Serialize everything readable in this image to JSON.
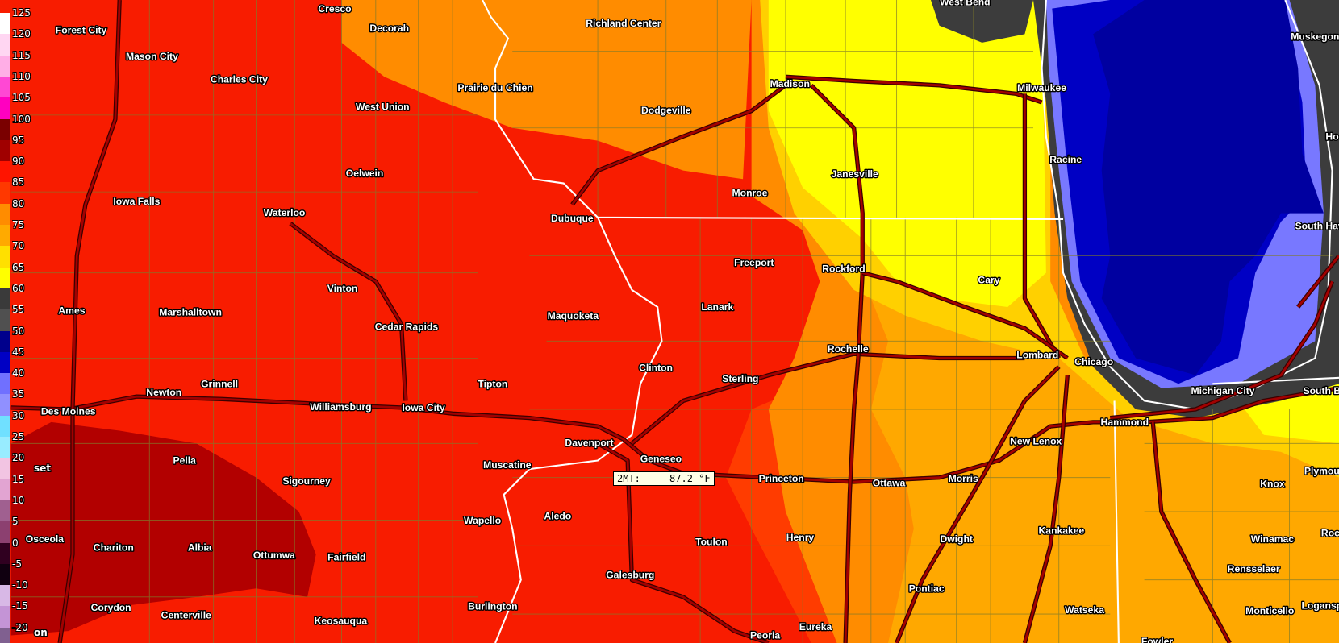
{
  "map": {
    "variable_readout": {
      "label": "2MT:",
      "value": "87.2",
      "unit": "°F"
    },
    "colors": {
      "base_red": "#f81c00",
      "dark_red": "#b20000",
      "orange_red": "#ff3c00",
      "orange": "#ff8c00",
      "light_orange": "#ffa800",
      "gold": "#ffd000",
      "yellow": "#ffff00",
      "lake_gray": "#3c3c3c",
      "lake_light_blue": "#7878ff",
      "lake_dark_blue": "#0000a0",
      "roads": "#a30000",
      "state_lines": "#ffffff"
    },
    "cities": [
      "Forest City",
      "Cresco",
      "Decorah",
      "Richland Center",
      "West Bend",
      "Muskegon",
      "Mason City",
      "Charles City",
      "Prairie du Chien",
      "Madison",
      "Milwaukee",
      "West Union",
      "Dodgeville",
      "Racine",
      "Ho",
      "Oelwein",
      "Janesville",
      "Monroe",
      "Iowa Falls",
      "Waterloo",
      "Dubuque",
      "South Hav",
      "Freeport",
      "Rockford",
      "Cary",
      "Vinton",
      "Lanark",
      "Ames",
      "Marshalltown",
      "Maquoketa",
      "Cedar Rapids",
      "Rochelle",
      "Lombard",
      "Chicago",
      "Clinton",
      "Sterling",
      "Grinnell",
      "Newton",
      "Michigan City",
      "South B",
      "Williamsburg",
      "Iowa City",
      "Tipton",
      "Des Moines",
      "Hammond",
      "New Lenox",
      "Davenport",
      "Geneseo",
      "Muscatine",
      "Pella",
      "Plymou",
      "Sigourney",
      "Princeton",
      "Ottawa",
      "Morris",
      "Knox",
      "Wapello",
      "Aledo",
      "Toulon",
      "Henry",
      "Dwight",
      "Kankakee",
      "Winamac",
      "Roc",
      "Osceola",
      "Chariton",
      "Albia",
      "Ottumwa",
      "Fairfield",
      "Galesburg",
      "Rensselaer",
      "Pontiac",
      "Corydon",
      "Centerville",
      "Burlington",
      "Keosauqua",
      "Watseka",
      "Monticello",
      "Logansp",
      "Peoria",
      "Eureka",
      "Fowler"
    ]
  },
  "legend": {
    "unit": "°F",
    "labels": [
      "125",
      "120",
      "115",
      "110",
      "105",
      "100",
      "95",
      "90",
      "85",
      "80",
      "75",
      "70",
      "65",
      "60",
      "55",
      "50",
      "45",
      "40",
      "35",
      "30",
      "25",
      "20",
      "15",
      "10",
      "5",
      "0",
      "-5",
      "-10",
      "-15",
      "-20"
    ],
    "colors": [
      "#ffffff",
      "#ffd6f2",
      "#ffaee6",
      "#ff48d4",
      "#ff00c0",
      "#7a0000",
      "#a00000",
      "#ff1400",
      "#ff3800",
      "#ff8c00",
      "#ffaa00",
      "#ffe000",
      "#ffff00",
      "#3a3a3a",
      "#505050",
      "#00008c",
      "#0000c4",
      "#7070ff",
      "#9090ff",
      "#70e0ff",
      "#98ecff",
      "#f2c4e2",
      "#e2a4d2",
      "#a06090",
      "#8c4070",
      "#300020",
      "#100010",
      "#d8b8e6",
      "#c494d6",
      "#806090"
    ],
    "partial_labels": [
      "set",
      "on"
    ]
  }
}
